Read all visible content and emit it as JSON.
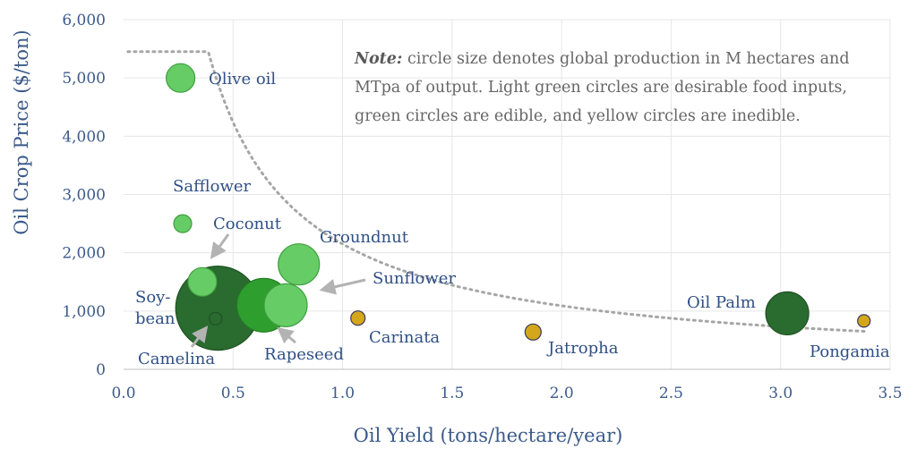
{
  "chart_data": {
    "type": "scatter",
    "title": "",
    "xlabel": "Oil Yield (tons/hectare/year)",
    "ylabel": "Oil Crop Price ($/ton)",
    "xlim": [
      0,
      3.5
    ],
    "ylim": [
      0,
      6000
    ],
    "x_ticks": [
      "0.0",
      "0.5",
      "1.0",
      "1.5",
      "2.0",
      "2.5",
      "3.0",
      "3.5"
    ],
    "y_ticks": [
      "0",
      "1,000",
      "2,000",
      "3,000",
      "4,000",
      "5,000",
      "6,000"
    ],
    "grid": true,
    "colors": {
      "light_green": "#66cc66",
      "green": "#2e9e2e",
      "dark_green": "#2a6b2f",
      "yellow": "#d4a71a",
      "trend": "#a6a6a6"
    },
    "points": [
      {
        "label": "Soybean",
        "x": 0.43,
        "y": 1050,
        "category": "dark_green",
        "size": 47
      },
      {
        "label": "Rapeseed",
        "x": 0.64,
        "y": 1100,
        "category": "green",
        "size": 30
      },
      {
        "label": "Sunflower",
        "x": 0.74,
        "y": 1100,
        "category": "light_green",
        "size": 24
      },
      {
        "label": "Groundnut",
        "x": 0.8,
        "y": 1800,
        "category": "light_green",
        "size": 23
      },
      {
        "label": "Coconut",
        "x": 0.36,
        "y": 1500,
        "category": "light_green",
        "size": 16
      },
      {
        "label": "Safflower",
        "x": 0.27,
        "y": 2500,
        "category": "light_green",
        "size": 10
      },
      {
        "label": "Olive oil",
        "x": 0.26,
        "y": 5000,
        "category": "light_green",
        "size": 16
      },
      {
        "label": "Camelina",
        "x": 0.42,
        "y": 870,
        "category": "dark_green",
        "size": 7
      },
      {
        "label": "Carinata",
        "x": 1.07,
        "y": 880,
        "category": "yellow",
        "size": 8
      },
      {
        "label": "Jatropha",
        "x": 1.87,
        "y": 640,
        "category": "yellow",
        "size": 9
      },
      {
        "label": "Oil Palm",
        "x": 3.03,
        "y": 960,
        "category": "dark_green",
        "size": 24
      },
      {
        "label": "Pongamia",
        "x": 3.38,
        "y": 830,
        "category": "yellow",
        "size": 7
      }
    ],
    "trendline": {
      "type": "power",
      "a": 2150,
      "b": -0.98,
      "x_range": [
        0.02,
        3.4
      ]
    },
    "note_label": "Note:",
    "note_text": "circle size denotes global production in M hectares and MTpa of output. Light green circles are desirable food inputs, green circles are edible, and yellow circles are inedible.",
    "point_labels": {
      "olive": "Olive oil",
      "safflower": "Safflower",
      "coconut": "Coconut",
      "groundnut": "Groundnut",
      "sunflower": "Sunflower",
      "soy_line1": "Soy-",
      "soy_line2": "bean",
      "camelina": "Camelina",
      "rapeseed": "Rapeseed",
      "carinata": "Carinata",
      "jatropha": "Jatropha",
      "oilpalm": "Oil Palm",
      "pongamia": "Pongamia"
    }
  }
}
